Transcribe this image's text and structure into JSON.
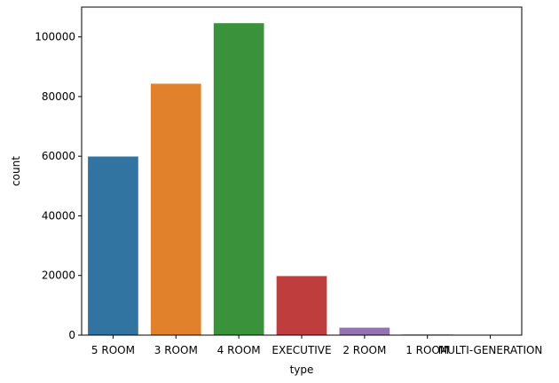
{
  "chart_data": {
    "type": "bar",
    "xlabel": "type",
    "ylabel": "count",
    "categories": [
      "5 ROOM",
      "3 ROOM",
      "4 ROOM",
      "EXECUTIVE",
      "2 ROOM",
      "1 ROOM",
      "MULTI-GENERATION"
    ],
    "values": [
      59900,
      84300,
      104600,
      19800,
      2500,
      200,
      150
    ],
    "colors": [
      "#3274a1",
      "#e1812c",
      "#3a923a",
      "#c03d3e",
      "#9372b2",
      "#845b53",
      "#d684bd"
    ],
    "ylim": [
      0,
      110000
    ],
    "yticks": [
      0,
      20000,
      40000,
      60000,
      80000,
      100000
    ],
    "grid": false,
    "legend": "none"
  }
}
